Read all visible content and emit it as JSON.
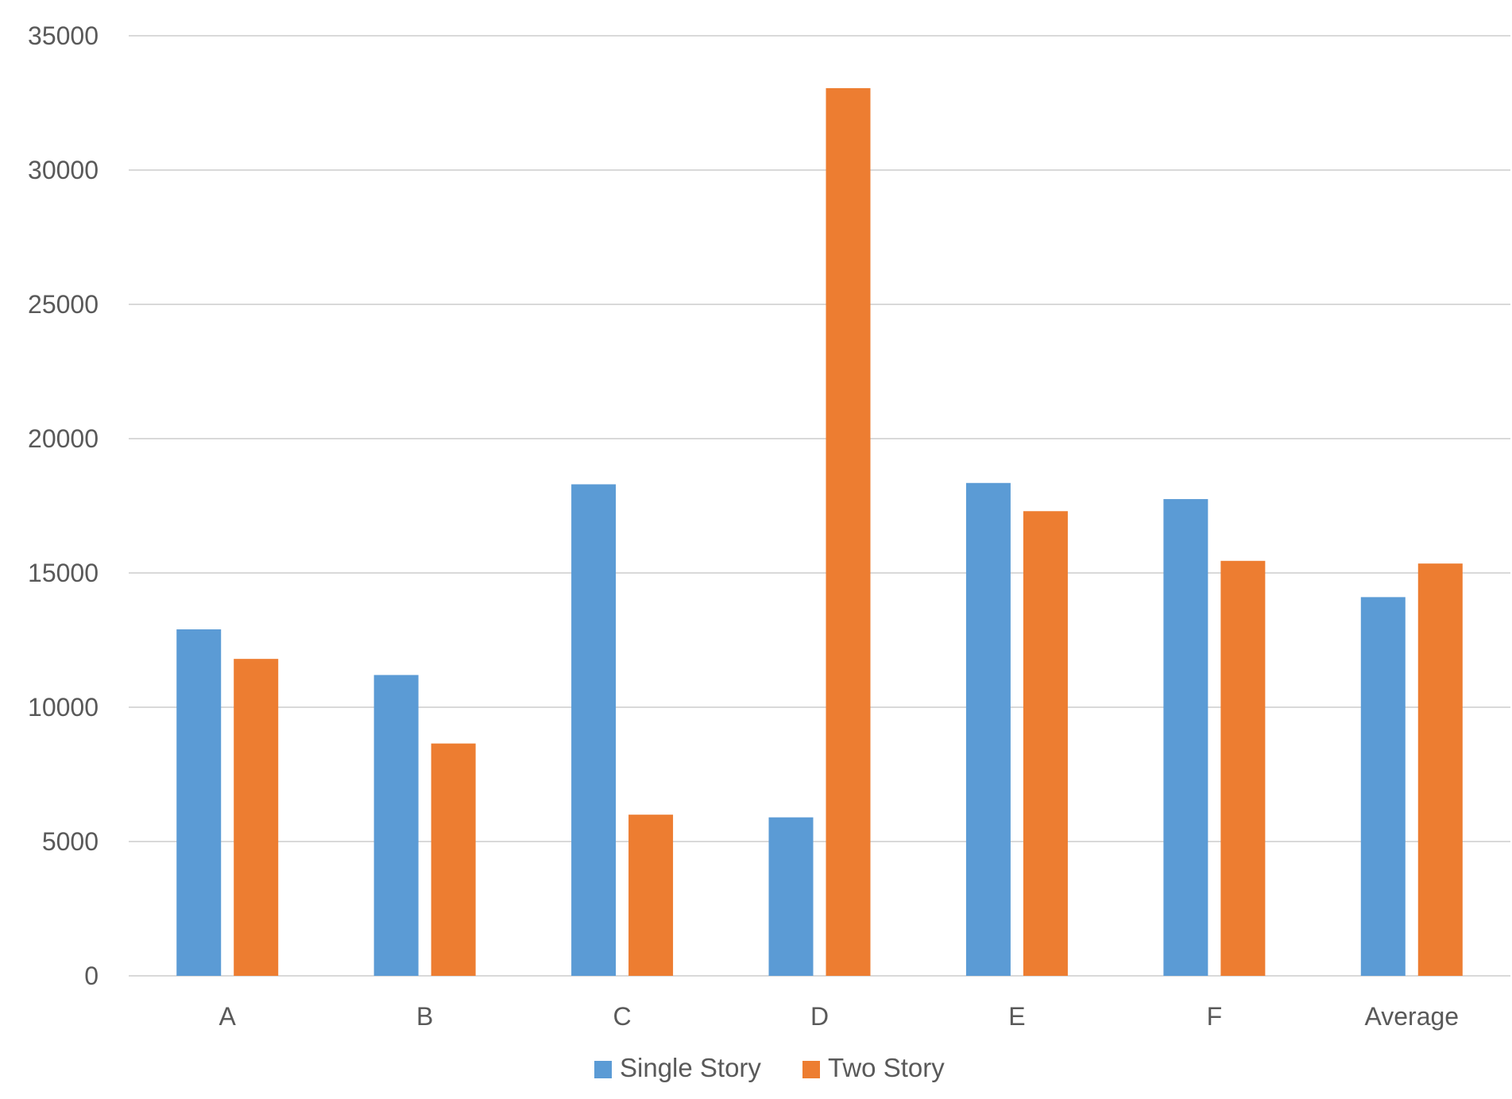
{
  "chart_data": {
    "type": "bar",
    "title": "",
    "xlabel": "",
    "ylabel": "",
    "categories": [
      "A",
      "B",
      "C",
      "D",
      "E",
      "F",
      "Average"
    ],
    "series": [
      {
        "name": "Single Story",
        "color": "#5B9BD5",
        "values": [
          12900,
          11200,
          18300,
          5900,
          18350,
          17750,
          14100
        ]
      },
      {
        "name": "Two Story",
        "color": "#ED7D31",
        "values": [
          11800,
          8650,
          6000,
          33050,
          17300,
          15450,
          15350
        ]
      }
    ],
    "ylim": [
      0,
      35000
    ],
    "yticks": [
      "0",
      "5000",
      "10000",
      "15000",
      "20000",
      "25000",
      "30000",
      "35000"
    ],
    "grid": true,
    "gridColor": "#D9D9D9",
    "legend": "bottom-center"
  }
}
